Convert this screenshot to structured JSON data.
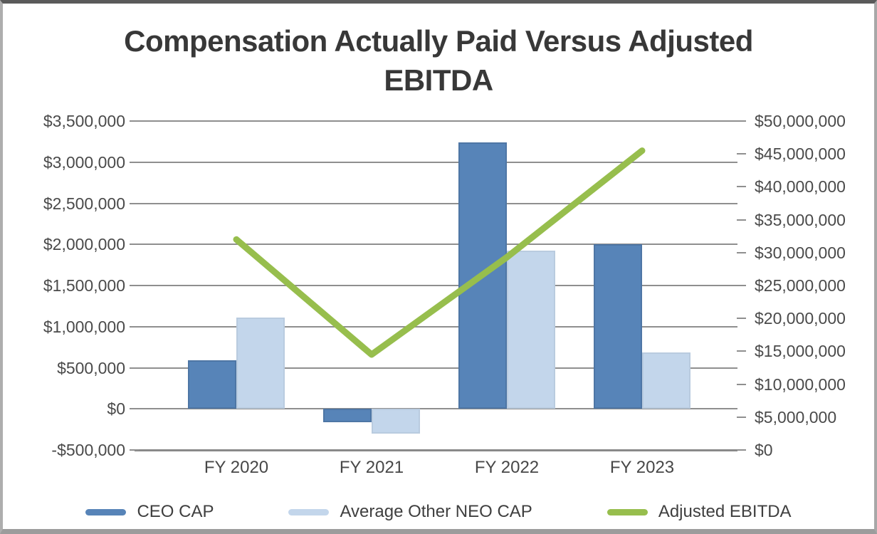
{
  "chart_data": {
    "type": "combo_bar_line",
    "title": "Compensation Actually Paid Versus Adjusted EBITDA",
    "title_lines": [
      "Compensation Actually Paid Versus Adjusted",
      "EBITDA"
    ],
    "categories": [
      "FY 2020",
      "FY 2021",
      "FY 2022",
      "FY 2023"
    ],
    "series": [
      {
        "name": "CEO CAP",
        "type": "bar",
        "axis": "left",
        "color": "#5784B8",
        "values": [
          590000,
          -160000,
          3240000,
          2000000
        ]
      },
      {
        "name": "Average Other NEO CAP",
        "type": "bar",
        "axis": "left",
        "color": "#C3D6EB",
        "values": [
          1110000,
          -300000,
          1920000,
          690000
        ]
      },
      {
        "name": "Adjusted EBITDA",
        "type": "line",
        "axis": "right",
        "color": "#97BE4D",
        "values": [
          32000000,
          14500000,
          29300000,
          45500000
        ]
      }
    ],
    "left_axis": {
      "min": -500000,
      "max": 3500000,
      "step": 500000,
      "tick_labels": [
        "$3,500,000",
        "$3,000,000",
        "$2,500,000",
        "$2,000,000",
        "$1,500,000",
        "$1,000,000",
        "$500,000",
        "$0",
        "-$500,000"
      ]
    },
    "right_axis": {
      "min": 0,
      "max": 50000000,
      "step": 5000000,
      "tick_labels": [
        "$50,000,000",
        "$45,000,000",
        "$40,000,000",
        "$35,000,000",
        "$30,000,000",
        "$25,000,000",
        "$20,000,000",
        "$15,000,000",
        "$10,000,000",
        "$5,000,000",
        "$0"
      ]
    },
    "grid": true,
    "legend_position": "bottom"
  }
}
